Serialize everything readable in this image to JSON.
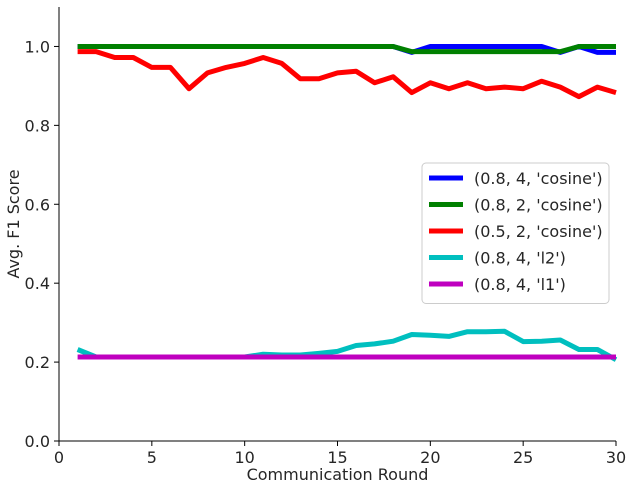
{
  "chart_data": {
    "type": "line",
    "title": "",
    "xlabel": "Communication Round",
    "ylabel": "Avg. F1 Score",
    "xlim": [
      0,
      30
    ],
    "ylim": [
      0.0,
      1.1
    ],
    "xticks": [
      0,
      5,
      10,
      15,
      20,
      25,
      30
    ],
    "xtick_labels": [
      "0",
      "5",
      "10",
      "15",
      "20",
      "25",
      "30"
    ],
    "yticks": [
      0.0,
      0.2,
      0.4,
      0.6,
      0.8,
      1.0
    ],
    "ytick_labels": [
      "0.0",
      "0.2",
      "0.4",
      "0.6",
      "0.8",
      "1.0"
    ],
    "grid": false,
    "legend_position": "center-right",
    "x": [
      1,
      2,
      3,
      4,
      5,
      6,
      7,
      8,
      9,
      10,
      11,
      12,
      13,
      14,
      15,
      16,
      17,
      18,
      19,
      20,
      21,
      22,
      23,
      24,
      25,
      26,
      27,
      28,
      29,
      30
    ],
    "series": [
      {
        "name": "(0.8, 4, 'cosine')",
        "color": "#0000ff",
        "values": [
          1.0,
          1.0,
          1.0,
          1.0,
          1.0,
          1.0,
          1.0,
          1.0,
          1.0,
          1.0,
          1.0,
          1.0,
          1.0,
          1.0,
          1.0,
          1.0,
          1.0,
          1.0,
          0.985,
          1.0,
          1.0,
          1.0,
          1.0,
          1.0,
          1.0,
          1.0,
          0.985,
          1.0,
          0.985,
          0.985
        ]
      },
      {
        "name": "(0.8, 2, 'cosine')",
        "color": "#008000",
        "values": [
          1.0,
          1.0,
          1.0,
          1.0,
          1.0,
          1.0,
          1.0,
          1.0,
          1.0,
          1.0,
          1.0,
          1.0,
          1.0,
          1.0,
          1.0,
          1.0,
          1.0,
          1.0,
          0.987,
          0.987,
          0.987,
          0.987,
          0.987,
          0.987,
          0.987,
          0.987,
          0.987,
          1.0,
          1.0,
          1.0
        ]
      },
      {
        "name": "(0.5, 2, 'cosine')",
        "color": "#ff0000",
        "values": [
          0.987,
          0.987,
          0.972,
          0.972,
          0.947,
          0.947,
          0.893,
          0.933,
          0.947,
          0.957,
          0.972,
          0.957,
          0.918,
          0.918,
          0.933,
          0.937,
          0.908,
          0.923,
          0.883,
          0.908,
          0.893,
          0.908,
          0.893,
          0.897,
          0.893,
          0.912,
          0.897,
          0.873,
          0.897,
          0.883
        ]
      },
      {
        "name": "(0.8, 4, 'l2')",
        "color": "#00bfbf",
        "values": [
          0.232,
          0.213,
          0.213,
          0.213,
          0.213,
          0.213,
          0.213,
          0.213,
          0.213,
          0.213,
          0.22,
          0.218,
          0.218,
          0.222,
          0.227,
          0.242,
          0.246,
          0.253,
          0.27,
          0.268,
          0.265,
          0.277,
          0.277,
          0.278,
          0.252,
          0.253,
          0.256,
          0.232,
          0.232,
          0.206
        ]
      },
      {
        "name": "(0.8, 4, 'l1')",
        "color": "#bf00bf",
        "values": [
          0.213,
          0.213,
          0.213,
          0.213,
          0.213,
          0.213,
          0.213,
          0.213,
          0.213,
          0.213,
          0.213,
          0.213,
          0.213,
          0.213,
          0.213,
          0.213,
          0.213,
          0.213,
          0.213,
          0.213,
          0.213,
          0.213,
          0.213,
          0.213,
          0.213,
          0.213,
          0.213,
          0.213,
          0.213,
          0.213
        ]
      }
    ]
  }
}
